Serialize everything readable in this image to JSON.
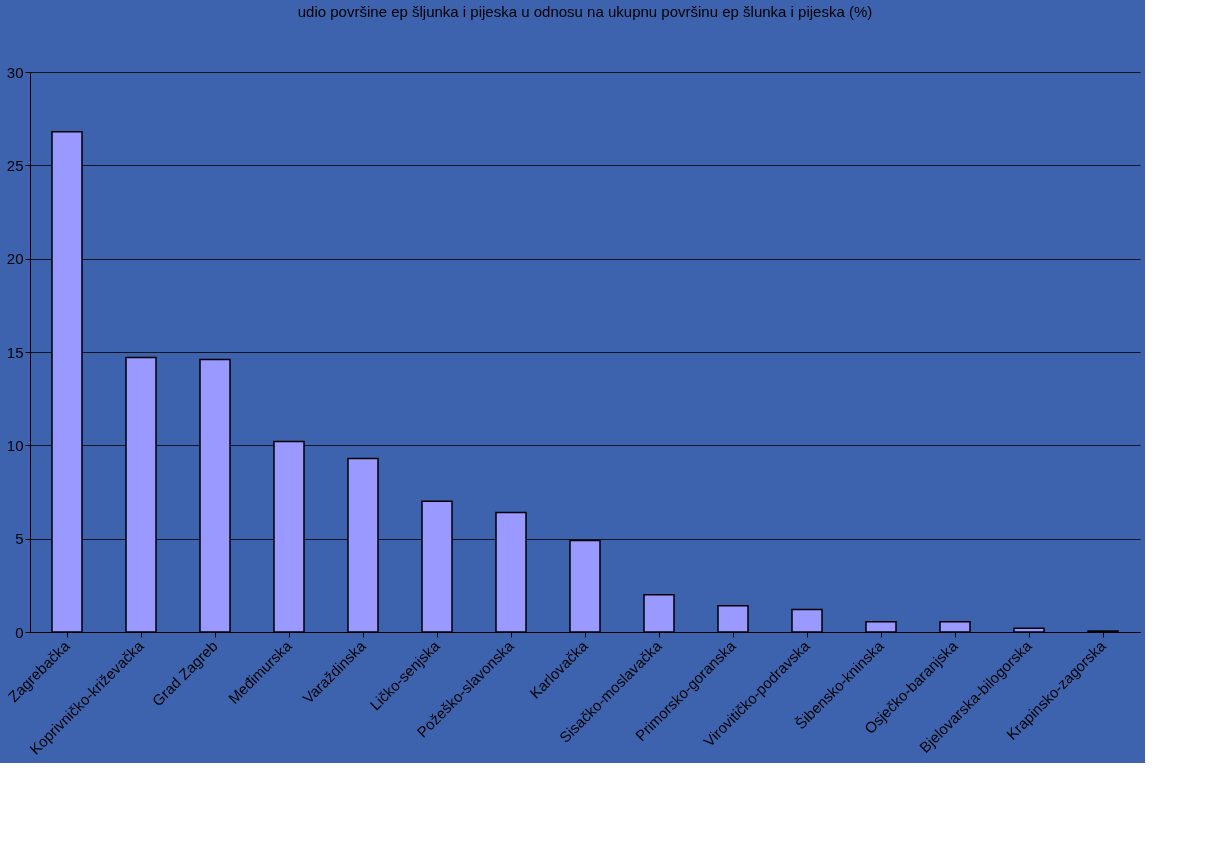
{
  "chart_data": {
    "type": "bar",
    "title": "udio površine ep šljunka i pijeska u odnosu na ukupnu površinu ep šlunka i pijeska (%)",
    "categories": [
      "Zagrebačka",
      "Koprivničko-križevačka",
      "Grad Zagreb",
      "Međimurska",
      "Varaždinska",
      "Ličko-senjska",
      "Požeško-slavonska",
      "Karlovačka",
      "Sisačko-moslavačka",
      "Primorsko-goranska",
      "Virovitičko-podravska",
      "Šibensko-kninska",
      "Osječko-baranjska",
      "Bjelovarska-bilogorska",
      "Krapinsko-zagorska"
    ],
    "values": [
      26.8,
      14.7,
      14.6,
      10.2,
      9.3,
      7.0,
      6.4,
      4.9,
      2.0,
      1.4,
      1.2,
      0.55,
      0.55,
      0.2,
      0.05
    ],
    "color": "#9999ff",
    "ylim": [
      0,
      30
    ],
    "yticks": [
      0,
      5,
      10,
      15,
      20,
      25,
      30
    ],
    "grid": "y"
  }
}
